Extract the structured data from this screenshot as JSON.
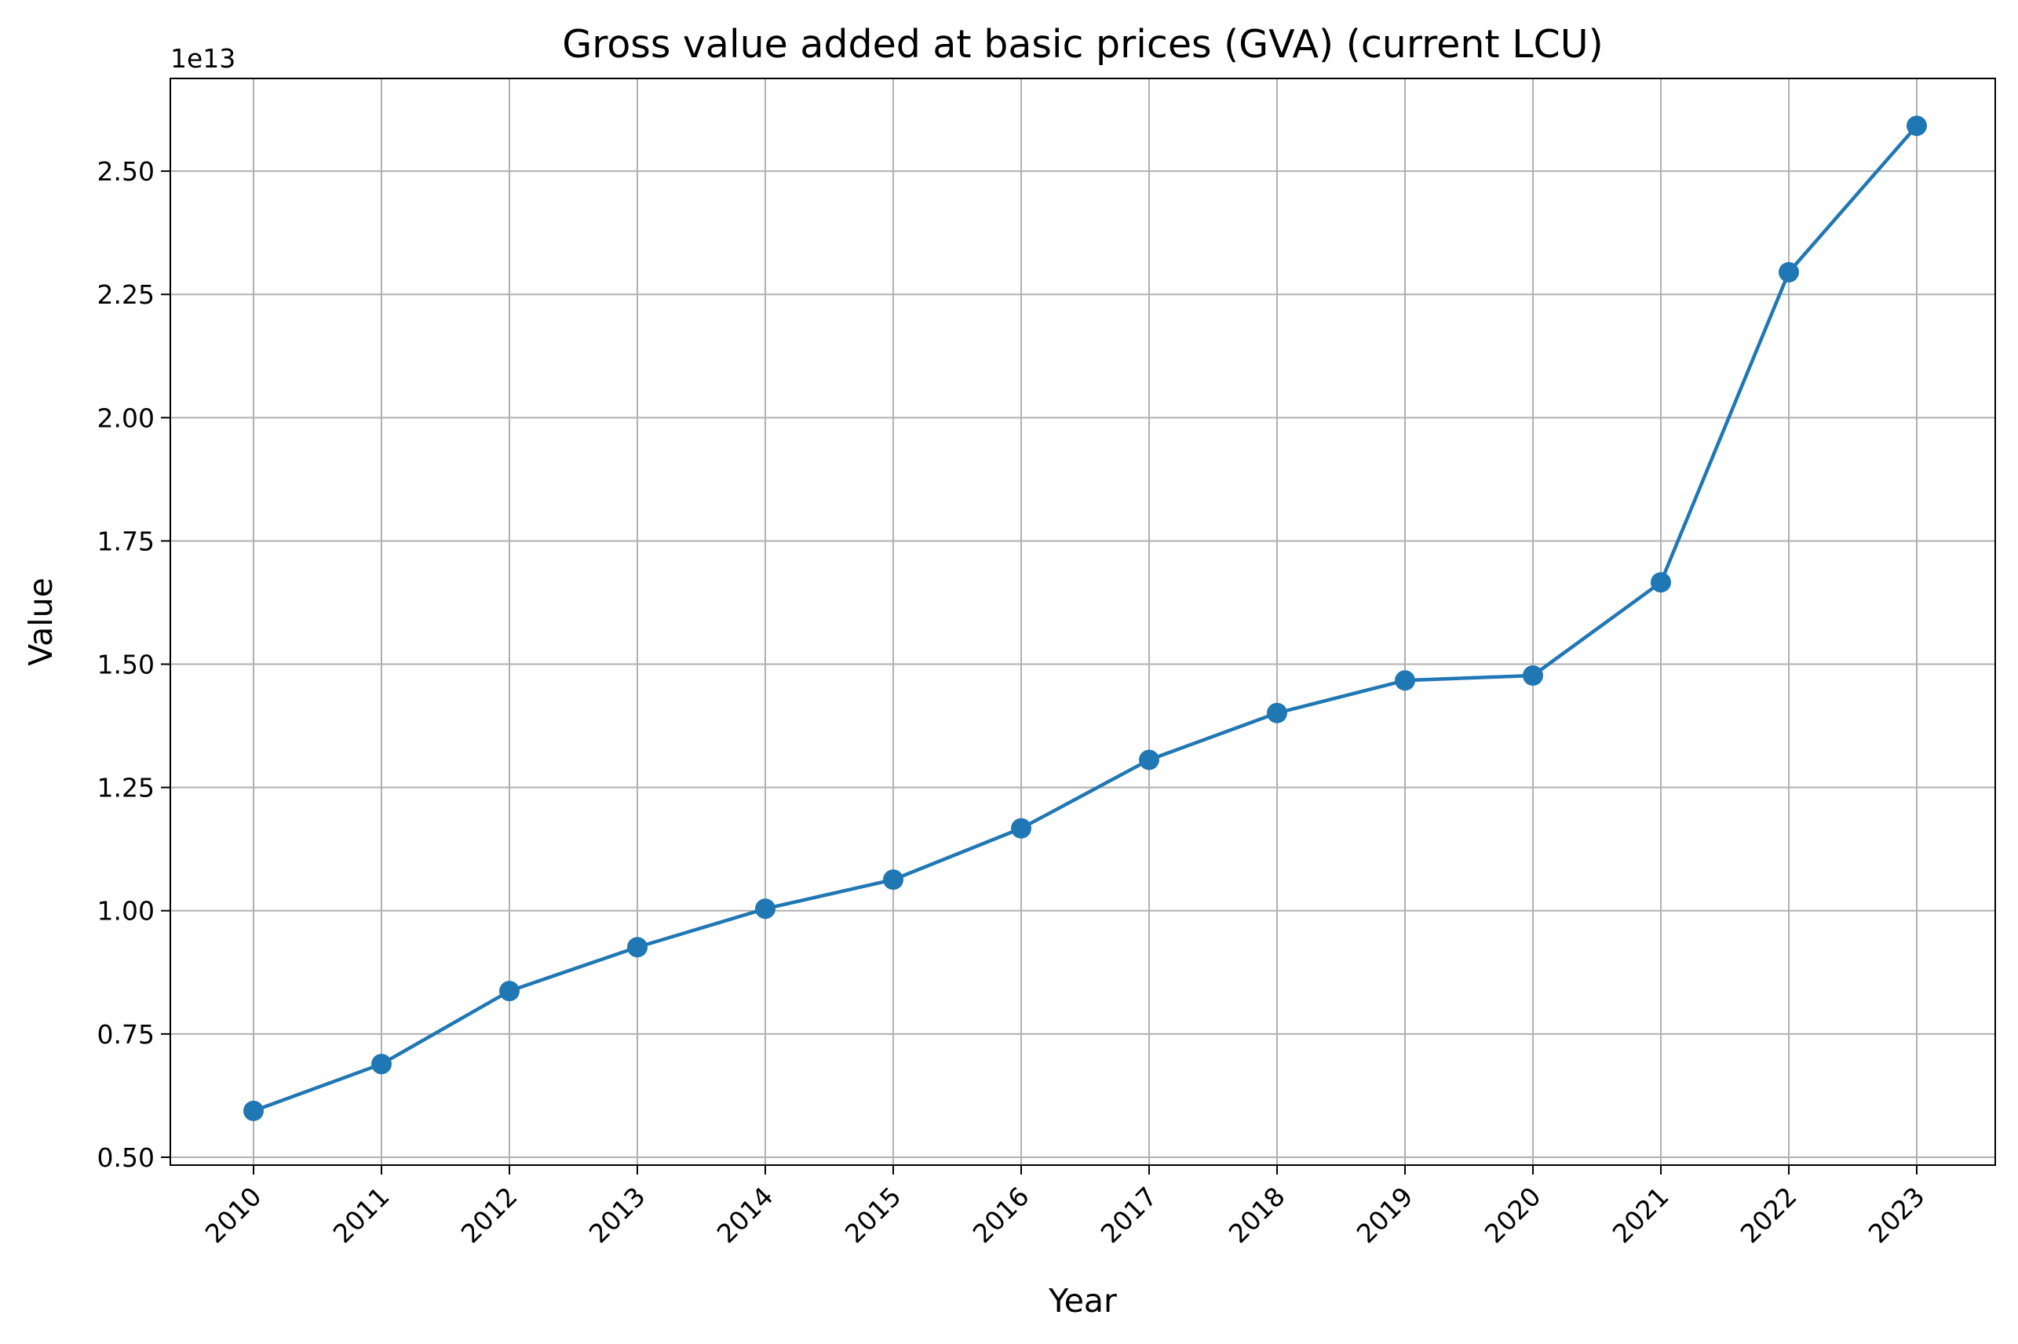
{
  "chart_data": {
    "type": "line",
    "title": "Gross value added at basic prices (GVA) (current LCU)",
    "xlabel": "Year",
    "ylabel": "Value",
    "y_offset_label": "1e13",
    "y_scale": 10000000000000,
    "x": [
      "2010",
      "2011",
      "2012",
      "2013",
      "2014",
      "2015",
      "2016",
      "2017",
      "2018",
      "2019",
      "2020",
      "2021",
      "2022",
      "2023"
    ],
    "series": [
      {
        "values": [
          5940000000000.0,
          6890000000000.0,
          8370000000000.0,
          9260000000000.0,
          10040000000000.0,
          10630000000000.0,
          11670000000000.0,
          13060000000000.0,
          14010000000000.0,
          14670000000000.0,
          14770000000000.0,
          16660000000000.0,
          22950000000000.0,
          25920000000000.0
        ],
        "color": "#1f77b4",
        "marker": "circle"
      }
    ],
    "y_ticks": [
      "0.50",
      "0.75",
      "1.00",
      "1.25",
      "1.50",
      "1.75",
      "2.00",
      "2.25",
      "2.50"
    ],
    "ylim": [
      4840000000000.0,
      26880000000000.0
    ],
    "grid": true,
    "grid_color": "#b0b0b0",
    "x_tick_rotation": -45
  }
}
